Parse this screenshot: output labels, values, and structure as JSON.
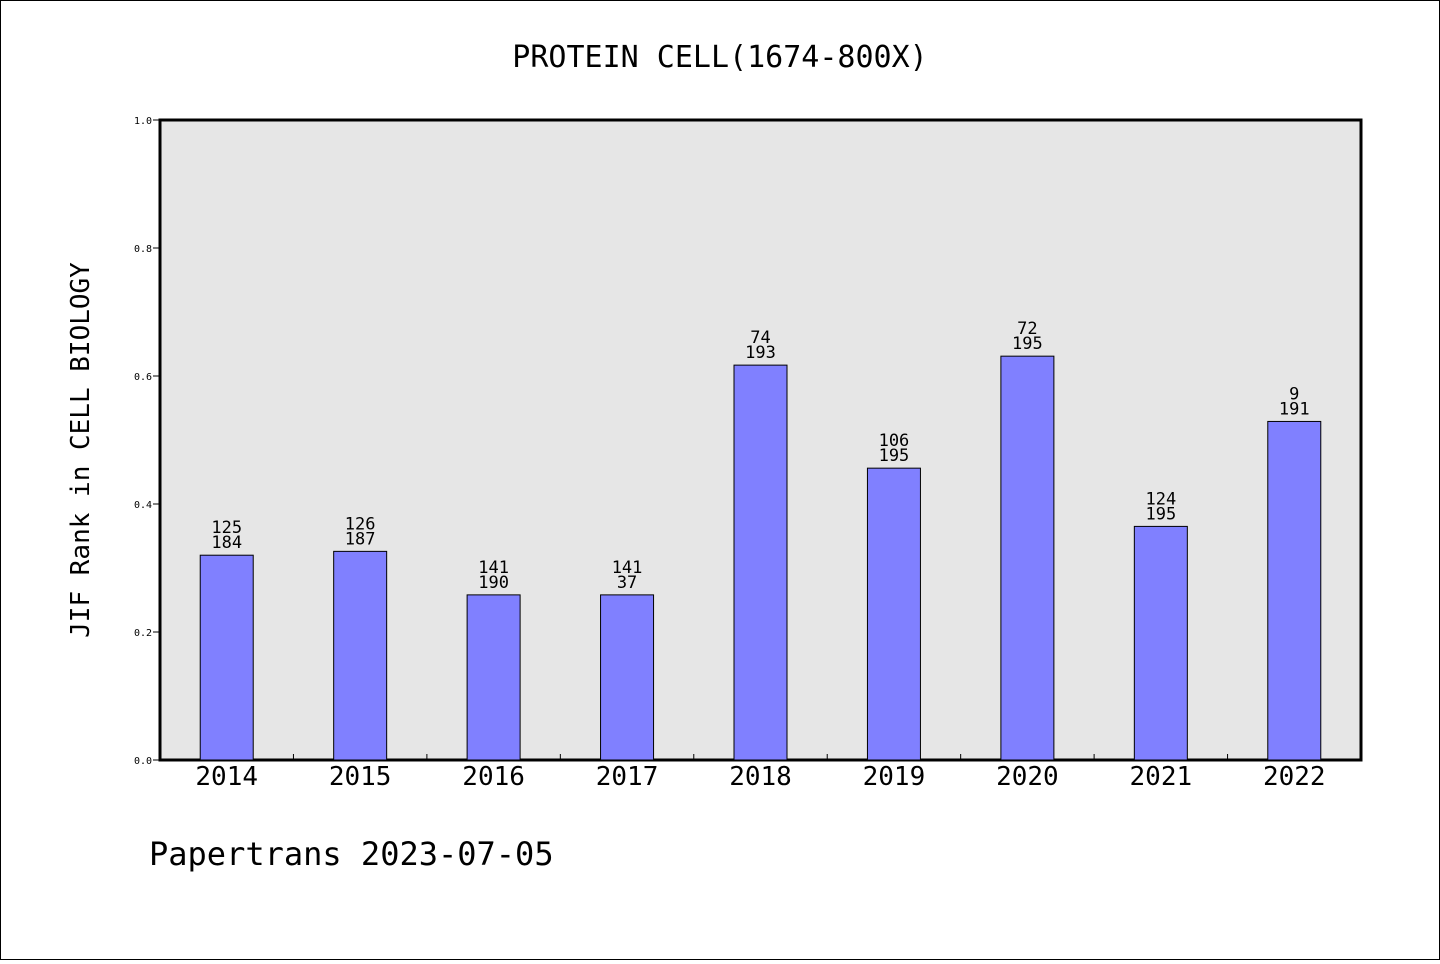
{
  "chart_data": {
    "type": "bar",
    "title": "PROTEIN CELL(1674-800X)",
    "ylabel": "JIF Rank in CELL BIOLOGY",
    "xlabel": "",
    "ylim": [
      0,
      1.0
    ],
    "yticks": [
      "0.0",
      "0.2",
      "0.4",
      "0.6",
      "0.8",
      "1.0"
    ],
    "grid": false,
    "categories": [
      "2014",
      "2015",
      "2016",
      "2017",
      "2018",
      "2019",
      "2020",
      "2021",
      "2022"
    ],
    "values": [
      0.32,
      0.326,
      0.258,
      0.258,
      0.617,
      0.456,
      0.631,
      0.365,
      0.529
    ],
    "labels_top": [
      "125",
      "126",
      "141",
      "141",
      "74",
      "106",
      "72",
      "124",
      "9"
    ],
    "labels_bottom": [
      "184",
      "187",
      "190",
      "37",
      "193",
      "195",
      "195",
      "195",
      "191"
    ],
    "colors": {
      "bar": "#8080ff",
      "plot_bg": "#e6e6e6",
      "axis": "#000000"
    }
  },
  "footer": "Papertrans 2023-07-05"
}
